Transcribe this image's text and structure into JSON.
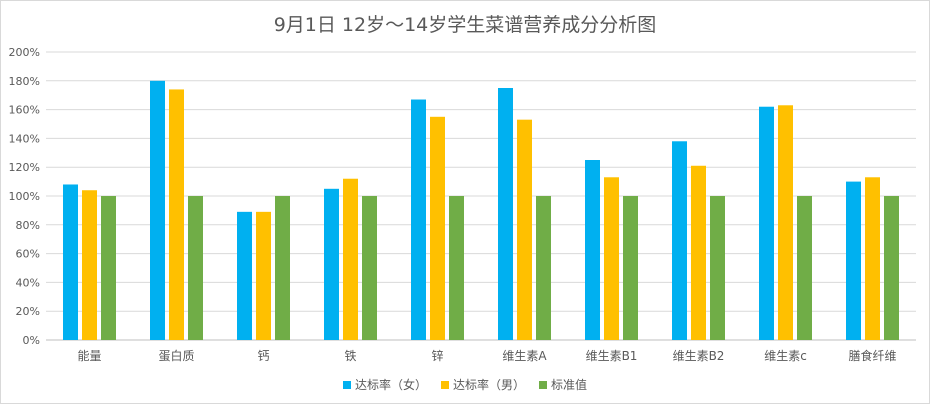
{
  "chart_data": {
    "type": "bar",
    "title": "9月1日 12岁～14岁学生菜谱营养成分分析图",
    "categories": [
      "能量",
      "蛋白质",
      "钙",
      "铁",
      "锌",
      "维生素A",
      "维生素B1",
      "维生素B2",
      "维生素c",
      "膳食纤维"
    ],
    "series": [
      {
        "name": "达标率（女）",
        "color": "#00B0F0",
        "values": [
          108,
          180,
          89,
          105,
          167,
          175,
          125,
          138,
          162,
          110
        ]
      },
      {
        "name": "达标率（男）",
        "color": "#FFC000",
        "values": [
          104,
          174,
          89,
          112,
          155,
          153,
          113,
          121,
          163,
          113
        ]
      },
      {
        "name": "标准值",
        "color": "#70AD47",
        "values": [
          100,
          100,
          100,
          100,
          100,
          100,
          100,
          100,
          100,
          100
        ]
      }
    ],
    "ylim": [
      0,
      200
    ],
    "yticks": [
      "0%",
      "20%",
      "40%",
      "60%",
      "80%",
      "100%",
      "120%",
      "140%",
      "160%",
      "180%",
      "200%"
    ],
    "grid": true,
    "legend_position": "bottom"
  }
}
